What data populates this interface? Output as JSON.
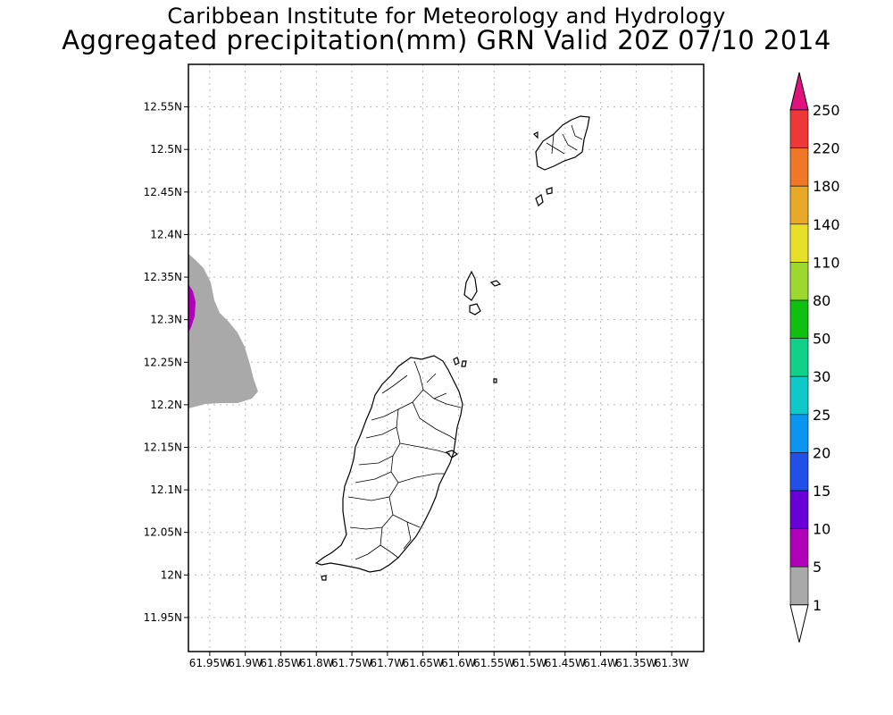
{
  "title_line1": "Caribbean Institute for Meteorology and Hydrology",
  "title_line2": "Aggregated precipitation(mm) GRN Valid 20Z 07/10 2014",
  "lat_ticks": [
    {
      "label": "12.55N",
      "value": 12.55
    },
    {
      "label": "12.5N",
      "value": 12.5
    },
    {
      "label": "12.45N",
      "value": 12.45
    },
    {
      "label": "12.4N",
      "value": 12.4
    },
    {
      "label": "12.35N",
      "value": 12.35
    },
    {
      "label": "12.3N",
      "value": 12.3
    },
    {
      "label": "12.25N",
      "value": 12.25
    },
    {
      "label": "12.2N",
      "value": 12.2
    },
    {
      "label": "12.15N",
      "value": 12.15
    },
    {
      "label": "12.1N",
      "value": 12.1
    },
    {
      "label": "12.05N",
      "value": 12.05
    },
    {
      "label": "12N",
      "value": 12.0
    },
    {
      "label": "11.95N",
      "value": 11.95
    }
  ],
  "lon_ticks": [
    {
      "label": "61.95W",
      "value": -61.95
    },
    {
      "label": "61.9W",
      "value": -61.9
    },
    {
      "label": "61.85W",
      "value": -61.85
    },
    {
      "label": "61.8W",
      "value": -61.8
    },
    {
      "label": "61.75W",
      "value": -61.75
    },
    {
      "label": "61.7W",
      "value": -61.7
    },
    {
      "label": "61.65W",
      "value": -61.65
    },
    {
      "label": "61.6W",
      "value": -61.6
    },
    {
      "label": "61.55W",
      "value": -61.55
    },
    {
      "label": "61.5W",
      "value": -61.5
    },
    {
      "label": "61.45W",
      "value": -61.45
    },
    {
      "label": "61.4W",
      "value": -61.4
    },
    {
      "label": "61.35W",
      "value": -61.35
    },
    {
      "label": "61.3W",
      "value": -61.3
    }
  ],
  "lat_range": [
    11.91,
    12.6
  ],
  "lon_range": [
    -61.98,
    -61.255
  ],
  "grid": true,
  "colorbar": {
    "labels": [
      "1",
      "5",
      "10",
      "15",
      "20",
      "25",
      "30",
      "50",
      "80",
      "110",
      "140",
      "180",
      "220",
      "250"
    ],
    "colors": [
      "#ffffff",
      "#a9a9a9",
      "#b000b8",
      "#6a00d8",
      "#2050e8",
      "#0a96f0",
      "#10c8c8",
      "#10d08a",
      "#10c010",
      "#9cd830",
      "#e8e028",
      "#e8a828",
      "#ee7828",
      "#ee3838",
      "#e0127e"
    ]
  },
  "precip_colors": {
    "level_1_5": "#a9a9a9",
    "level_5_10": "#b000b8"
  }
}
